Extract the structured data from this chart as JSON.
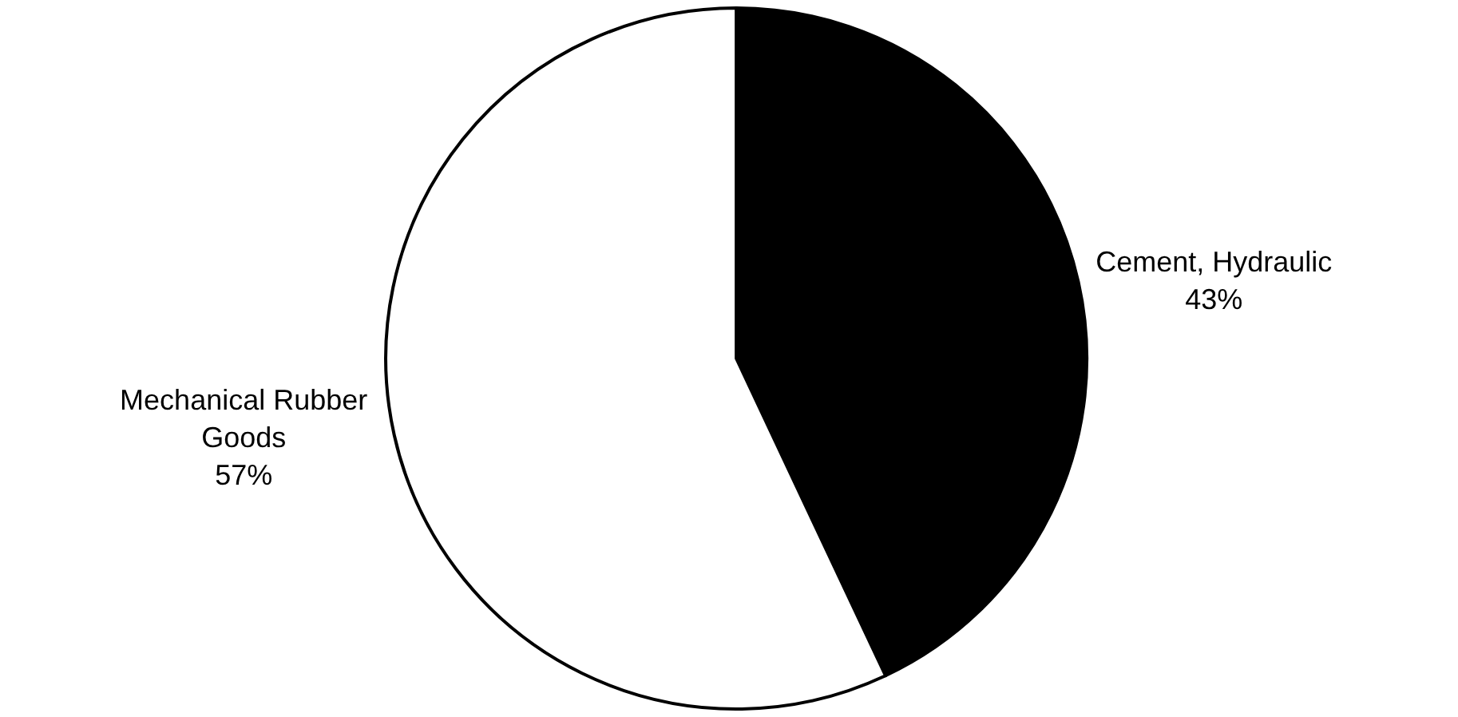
{
  "chart_data": {
    "type": "pie",
    "categories": [
      "Cement, Hydraulic",
      "Mechanical Rubber Goods"
    ],
    "values": [
      43,
      57
    ],
    "colors": [
      "#000000",
      "#ffffff"
    ],
    "value_labels": [
      "43%",
      "57%"
    ],
    "legend": false
  }
}
